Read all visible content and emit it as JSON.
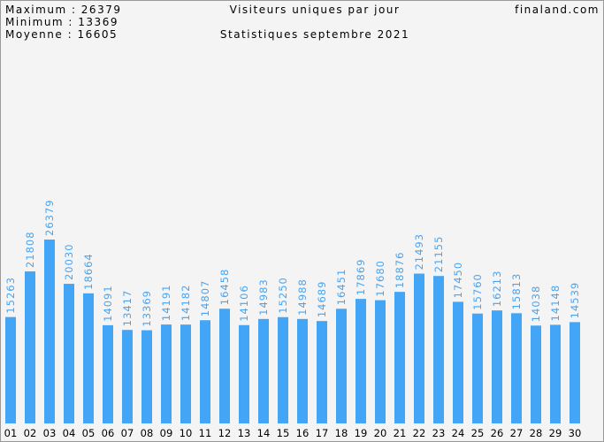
{
  "chart_data": {
    "type": "bar",
    "stats": [
      "Maximum : 26379",
      "Minimum : 13369",
      "Moyenne : 16605"
    ],
    "title": "Visiteurs uniques par jour",
    "subtitle": "Statistiques septembre 2021",
    "site": "finaland.com",
    "categories": [
      "01",
      "02",
      "03",
      "04",
      "05",
      "06",
      "07",
      "08",
      "09",
      "10",
      "11",
      "12",
      "13",
      "14",
      "15",
      "16",
      "17",
      "18",
      "19",
      "20",
      "21",
      "22",
      "23",
      "24",
      "25",
      "26",
      "27",
      "28",
      "29",
      "30"
    ],
    "values": [
      15263,
      21808,
      26379,
      20030,
      18664,
      14091,
      13417,
      13369,
      14191,
      14182,
      14807,
      16458,
      14106,
      14983,
      15250,
      14988,
      14689,
      16451,
      17869,
      17680,
      18876,
      21493,
      21155,
      17450,
      15760,
      16213,
      15813,
      14038,
      14148,
      14539
    ],
    "color": "#42a5f5"
  }
}
